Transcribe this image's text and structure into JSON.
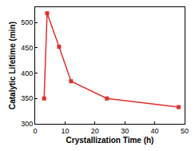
{
  "chart_data": {
    "type": "line",
    "x": [
      3,
      4,
      8,
      12,
      24,
      48
    ],
    "values": [
      350,
      518,
      452,
      384,
      350,
      333
    ],
    "xlabel": "Crystallization Time (h)",
    "ylabel": "Catalytic Lifetime (min)",
    "xlim": [
      0,
      50
    ],
    "xticks": [
      0,
      10,
      20,
      30,
      40,
      50
    ],
    "ylim": [
      300,
      530
    ],
    "yticks": [
      300,
      350,
      400,
      450,
      500
    ],
    "color": "#e0302d",
    "marker": "square",
    "grid": false
  }
}
